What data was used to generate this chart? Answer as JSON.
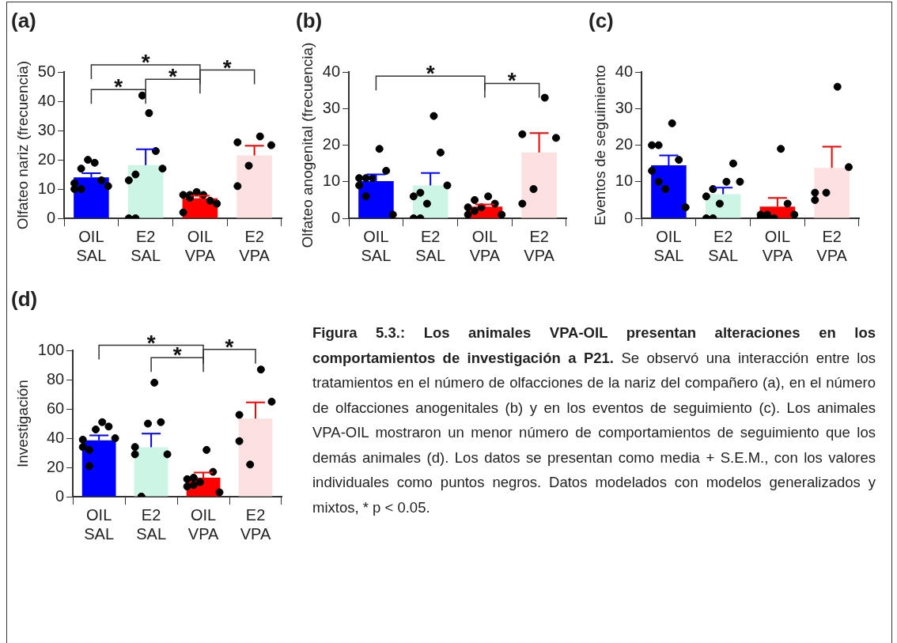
{
  "chart_data": [
    {
      "type": "bar",
      "title": "(a)",
      "ylabel": "Olfateo nariz (frecuencia)",
      "categories": [
        "OIL\nSAL",
        "E2\nSAL",
        "OIL\nVPA",
        "E2\nVPA"
      ],
      "values": [
        14,
        18.2,
        6.8,
        21.5
      ],
      "colors": [
        "#0000ff",
        "#ccf5e6",
        "#ff0000",
        "#fde0e0"
      ],
      "errors": [
        [
          14,
          15.4
        ],
        [
          18.2,
          23.6
        ],
        [
          6.8,
          7.7
        ],
        [
          21.5,
          24.8
        ]
      ],
      "ylim": [
        0,
        50
      ],
      "yticks": [
        0,
        10,
        20,
        30,
        40,
        50
      ],
      "annotations": [
        "*",
        "*",
        "*",
        "*"
      ],
      "legend": false,
      "grid": false,
      "series": [
        {
          "type": "scatter",
          "color": "#000000",
          "x": [
            "OIL\nSAL",
            "OIL\nSAL",
            "OIL\nSAL",
            "OIL\nSAL",
            "OIL\nSAL",
            "OIL\nSAL",
            "OIL\nSAL",
            "OIL\nSAL",
            "E2\nSAL",
            "E2\nSAL",
            "E2\nSAL",
            "E2\nSAL",
            "E2\nSAL",
            "E2\nSAL",
            "E2\nSAL",
            "E2\nSAL",
            "OIL\nVPA",
            "OIL\nVPA",
            "OIL\nVPA",
            "OIL\nVPA",
            "OIL\nVPA",
            "OIL\nVPA",
            "OIL\nVPA",
            "OIL\nVPA",
            "E2\nVPA",
            "E2\nVPA",
            "E2\nVPA",
            "E2\nVPA",
            "E2\nVPA"
          ],
          "values": [
            12,
            17,
            20,
            19,
            13,
            11,
            10,
            10,
            0,
            15,
            42,
            36,
            23,
            17,
            13,
            0,
            8,
            7,
            9,
            8,
            6,
            5,
            2,
            8,
            26,
            18,
            28,
            25,
            11
          ]
        }
      ]
    },
    {
      "type": "bar",
      "title": "(b)",
      "ylabel": "Olfateo anogenital (frecuencia)",
      "categories": [
        "OIL\nSAL",
        "E2\nSAL",
        "OIL\nVPA",
        "E2\nVPA"
      ],
      "values": [
        10.2,
        9,
        3.2,
        18
      ],
      "colors": [
        "#0000ff",
        "#ccf5e6",
        "#ff0000",
        "#fde0e0"
      ],
      "errors": [
        [
          10.2,
          12
        ],
        [
          9,
          12.4
        ],
        [
          3.2,
          3.8
        ],
        [
          18,
          23.3
        ]
      ],
      "ylim": [
        0,
        40
      ],
      "yticks": [
        0,
        10,
        20,
        30,
        40
      ],
      "annotations": [
        "*",
        "*"
      ],
      "legend": false,
      "grid": false,
      "series": [
        {
          "type": "scatter",
          "color": "#000000",
          "x": [
            "OIL\nSAL",
            "OIL\nSAL",
            "OIL\nSAL",
            "OIL\nSAL",
            "OIL\nSAL",
            "OIL\nSAL",
            "OIL\nSAL",
            "OIL\nSAL",
            "E2\nSAL",
            "E2\nSAL",
            "E2\nSAL",
            "E2\nSAL",
            "E2\nSAL",
            "E2\nSAL",
            "E2\nSAL",
            "E2\nSAL",
            "OIL\nVPA",
            "OIL\nVPA",
            "OIL\nVPA",
            "OIL\nVPA",
            "OIL\nVPA",
            "OIL\nVPA",
            "OIL\nVPA",
            "OIL\nVPA",
            "E2\nVPA",
            "E2\nVPA",
            "E2\nVPA",
            "E2\nVPA",
            "E2\nVPA"
          ],
          "values": [
            11,
            6,
            11,
            19,
            13,
            1,
            9,
            11,
            0,
            7,
            4,
            28,
            18,
            9,
            6,
            0,
            3,
            2,
            3,
            6,
            4,
            1,
            1,
            5,
            23,
            8,
            33,
            22,
            4
          ]
        }
      ]
    },
    {
      "type": "bar",
      "title": "(c)",
      "ylabel": "Eventos de seguimiento",
      "categories": [
        "OIL\nSAL",
        "E2\nSAL",
        "OIL\nVPA",
        "E2\nVPA"
      ],
      "values": [
        14.5,
        6.6,
        3.2,
        13.8
      ],
      "colors": [
        "#0000ff",
        "#ccf5e6",
        "#ff0000",
        "#fde0e0"
      ],
      "errors": [
        [
          14.5,
          17.2
        ],
        [
          6.6,
          8.4
        ],
        [
          3.2,
          5.6
        ],
        [
          13.8,
          19.6
        ]
      ],
      "ylim": [
        0,
        40
      ],
      "yticks": [
        0,
        10,
        20,
        30,
        40
      ],
      "legend": false,
      "grid": false,
      "series": [
        {
          "type": "scatter",
          "color": "#000000",
          "x": [
            "OIL\nSAL",
            "OIL\nSAL",
            "OIL\nSAL",
            "OIL\nSAL",
            "OIL\nSAL",
            "OIL\nSAL",
            "OIL\nSAL",
            "OIL\nSAL",
            "E2\nSAL",
            "E2\nSAL",
            "E2\nSAL",
            "E2\nSAL",
            "E2\nSAL",
            "E2\nSAL",
            "E2\nSAL",
            "E2\nSAL",
            "OIL\nVPA",
            "OIL\nVPA",
            "OIL\nVPA",
            "OIL\nVPA",
            "OIL\nVPA",
            "OIL\nVPA",
            "OIL\nVPA",
            "OIL\nVPA",
            "E2\nVPA",
            "E2\nVPA",
            "E2\nVPA",
            "E2\nVPA",
            "E2\nVPA"
          ],
          "values": [
            20,
            10,
            8,
            26,
            16,
            3,
            13,
            20,
            0,
            8,
            4,
            10,
            15,
            10,
            6,
            0,
            1,
            1,
            0,
            19,
            4,
            1,
            0,
            0,
            7,
            7,
            36,
            14,
            5
          ]
        }
      ]
    },
    {
      "type": "bar",
      "title": "(d)",
      "ylabel": "Investigación",
      "categories": [
        "OIL\nSAL",
        "E2\nSAL",
        "OIL\nVPA",
        "E2\nVPA"
      ],
      "values": [
        38.5,
        33.8,
        13,
        53.5
      ],
      "colors": [
        "#0000ff",
        "#ccf5e6",
        "#ff0000",
        "#fde0e0"
      ],
      "errors": [
        [
          38.5,
          42
        ],
        [
          33.8,
          43.2
        ],
        [
          13,
          16.5
        ],
        [
          53.5,
          64.5
        ]
      ],
      "ylim": [
        0,
        100
      ],
      "yticks": [
        0,
        20,
        40,
        60,
        80,
        100
      ],
      "annotations": [
        "*",
        "*",
        "*"
      ],
      "legend": false,
      "grid": false,
      "series": [
        {
          "type": "scatter",
          "color": "#000000",
          "x": [
            "OIL\nSAL",
            "OIL\nSAL",
            "OIL\nSAL",
            "OIL\nSAL",
            "OIL\nSAL",
            "OIL\nSAL",
            "OIL\nSAL",
            "OIL\nSAL",
            "E2\nSAL",
            "E2\nSAL",
            "E2\nSAL",
            "E2\nSAL",
            "E2\nSAL",
            "E2\nSAL",
            "E2\nSAL",
            "E2\nSAL",
            "OIL\nVPA",
            "OIL\nVPA",
            "OIL\nVPA",
            "OIL\nVPA",
            "OIL\nVPA",
            "OIL\nVPA",
            "OIL\nVPA",
            "OIL\nVPA",
            "E2\nVPA",
            "E2\nVPA",
            "E2\nVPA",
            "E2\nVPA",
            "E2\nVPA"
          ],
          "values": [
            39,
            21,
            46,
            51,
            48,
            40,
            34,
            32,
            34,
            0,
            50,
            78,
            51,
            29,
            29,
            0,
            12,
            8,
            10,
            32,
            17,
            3,
            7,
            13,
            38,
            22,
            87,
            65,
            56
          ]
        }
      ]
    },
    {
      "type": "other",
      "title": "Figura 5.3.: Los animales VPA-OIL presentan alteraciones en los comportamientos de investigación a P21.",
      "annotations": [
        "Se observó una interacción entre los tratamientos en el número de olfacciones de la nariz del compañero (a), en el número de olfacciones anogenitales (b) y en los eventos de seguimiento (c). Los animales VPA-OIL mostraron un menor número de comportamientos de seguimiento que los demás animales (d). Los datos se presentan como media + S.E.M., con los valores individuales como puntos negros. Datos modelados con modelos generalizados y mixtos, * p < 0.05."
      ]
    }
  ]
}
